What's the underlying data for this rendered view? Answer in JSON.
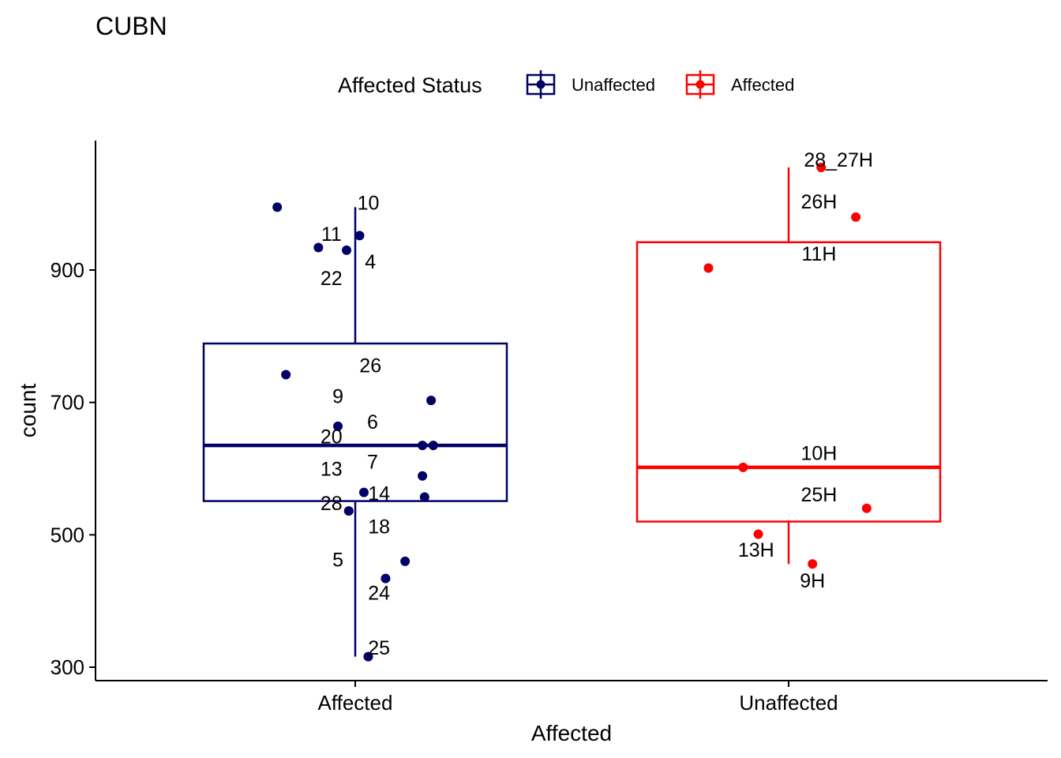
{
  "chart_data": {
    "type": "box",
    "title": "CUBN",
    "xlabel": "Affected",
    "ylabel": "count",
    "categories": [
      "Affected",
      "Unaffected"
    ],
    "y_ticks": [
      300,
      500,
      700,
      900
    ],
    "ylim": [
      277,
      1094
    ],
    "legend": {
      "title": "Affected Status",
      "position": "top",
      "entries": [
        {
          "label": "Unaffected",
          "color": "#000066"
        },
        {
          "label": "Affected",
          "color": "#ff0000"
        }
      ]
    },
    "series": [
      {
        "name": "Unaffected",
        "category": "Affected",
        "color": "#000066",
        "box": {
          "whisker_low": 316,
          "q1": 551,
          "median": 635,
          "q3": 789,
          "whisker_high": 995
        },
        "points": [
          {
            "dx": -0.36,
            "y": 995,
            "label": "10",
            "ldx": 0.06,
            "ly": 1002
          },
          {
            "dx": -0.17,
            "y": 934,
            "label": "11",
            "ldx": -0.11,
            "ly": 955
          },
          {
            "dx": 0.02,
            "y": 952,
            "label": "4",
            "ldx": 0.07,
            "ly": 913
          },
          {
            "dx": -0.04,
            "y": 930,
            "label": "22",
            "ldx": -0.11,
            "ly": 888
          },
          {
            "dx": -0.32,
            "y": 742,
            "label": "26",
            "ldx": 0.07,
            "ly": 756
          },
          {
            "dx": 0.35,
            "y": 703,
            "label": "9",
            "ldx": -0.08,
            "ly": 710
          },
          {
            "dx": -0.08,
            "y": 664,
            "label": "6",
            "ldx": 0.08,
            "ly": 671
          },
          {
            "dx": 0.31,
            "y": 635,
            "label": "20",
            "ldx": -0.11,
            "ly": 649
          },
          {
            "dx": 0.36,
            "y": 635,
            "label": "7",
            "ldx": 0.08,
            "ly": 611
          },
          {
            "dx": 0.31,
            "y": 589,
            "label": "13",
            "ldx": -0.11,
            "ly": 600
          },
          {
            "dx": 0.04,
            "y": 564,
            "label": "14",
            "ldx": 0.11,
            "ly": 563
          },
          {
            "dx": 0.32,
            "y": 557,
            "label": "28",
            "ldx": -0.11,
            "ly": 548
          },
          {
            "dx": -0.03,
            "y": 536,
            "label": "18",
            "ldx": 0.11,
            "ly": 513
          },
          {
            "dx": 0.23,
            "y": 460,
            "label": "5",
            "ldx": -0.08,
            "ly": 463
          },
          {
            "dx": 0.14,
            "y": 434,
            "label": "24",
            "ldx": 0.11,
            "ly": 413
          },
          {
            "dx": 0.06,
            "y": 316,
            "label": "25",
            "ldx": 0.11,
            "ly": 330
          }
        ]
      },
      {
        "name": "Affected",
        "category": "Unaffected",
        "color": "#ff0000",
        "box": {
          "whisker_low": 456,
          "q1": 520,
          "median": 602,
          "q3": 942,
          "whisker_high": 1055
        },
        "points": [
          {
            "dx": 0.15,
            "y": 1055,
            "label": "28_27H",
            "ldx": 0.23,
            "ly": 1067
          },
          {
            "dx": 0.31,
            "y": 980,
            "label": "26H",
            "ldx": 0.14,
            "ly": 1004
          },
          {
            "dx": -0.37,
            "y": 903,
            "label": "11H",
            "ldx": 0.14,
            "ly": 925
          },
          {
            "dx": -0.21,
            "y": 602,
            "label": "10H",
            "ldx": 0.14,
            "ly": 624
          },
          {
            "dx": 0.36,
            "y": 540,
            "label": "25H",
            "ldx": 0.14,
            "ly": 561
          },
          {
            "dx": -0.14,
            "y": 501,
            "label": "13H",
            "ldx": -0.15,
            "ly": 478
          },
          {
            "dx": 0.11,
            "y": 456,
            "label": "9H",
            "ldx": 0.11,
            "ly": 431
          }
        ]
      }
    ]
  }
}
